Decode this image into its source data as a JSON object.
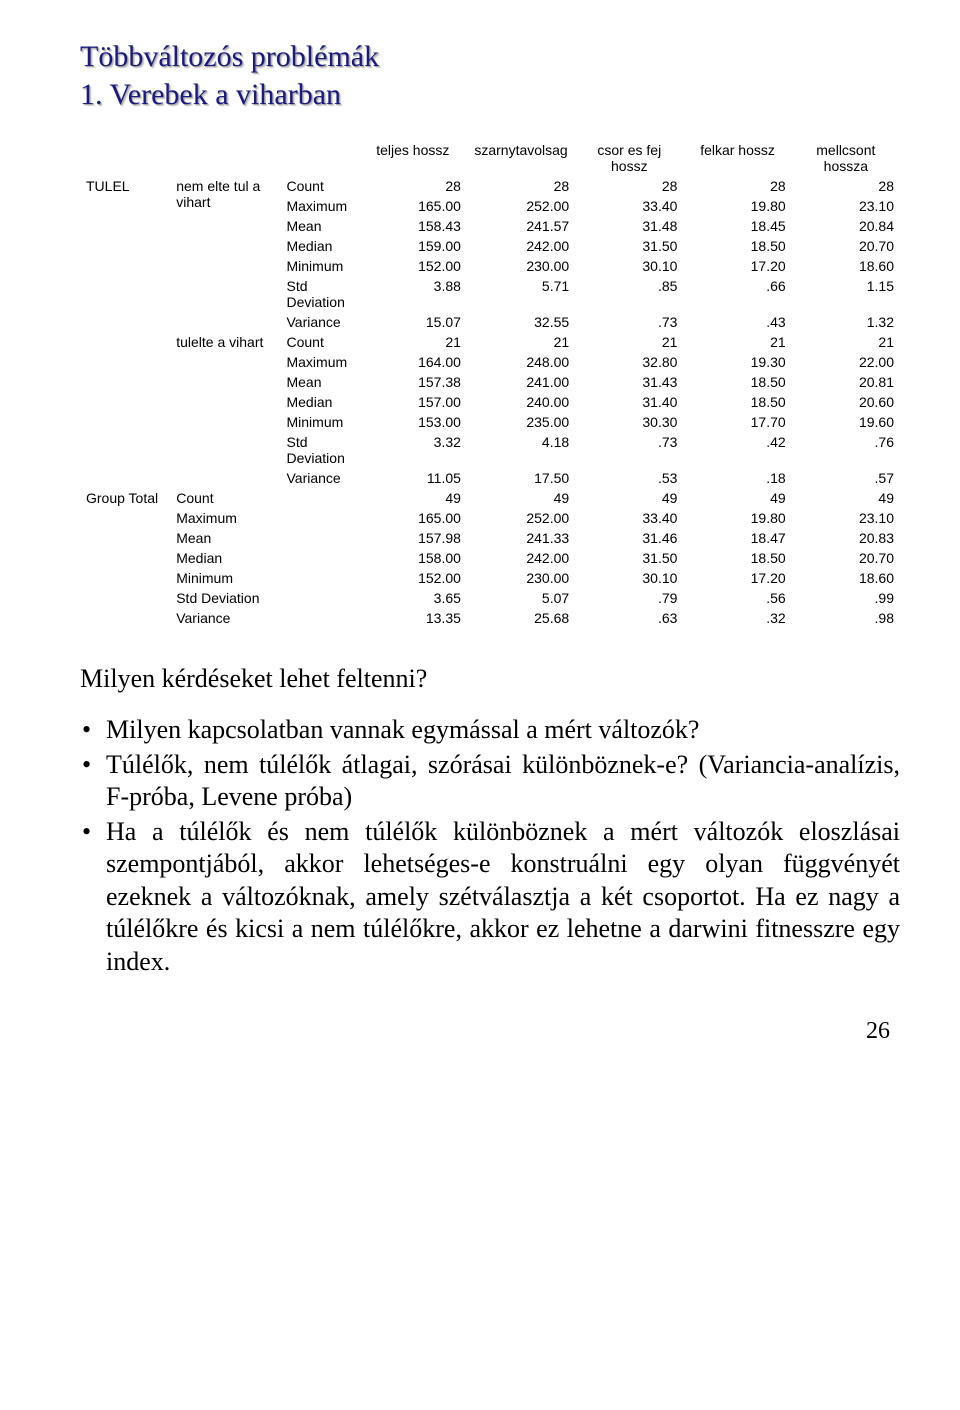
{
  "titles": {
    "main": "Többváltozós problémák",
    "sub": "1. Verebek a viharban"
  },
  "table": {
    "columns": [
      "teljes hossz",
      "szarnytavolsag",
      "csor es fej hossz",
      "felkar hossz",
      "mellcsont hossza"
    ],
    "groups": [
      {
        "name": "TULEL",
        "sub": [
          {
            "name": "nem elte tul a vihart",
            "rows": [
              [
                "Count",
                "28",
                "28",
                "28",
                "28",
                "28"
              ],
              [
                "Maximum",
                "165.00",
                "252.00",
                "33.40",
                "19.80",
                "23.10"
              ],
              [
                "Mean",
                "158.43",
                "241.57",
                "31.48",
                "18.45",
                "20.84"
              ],
              [
                "Median",
                "159.00",
                "242.00",
                "31.50",
                "18.50",
                "20.70"
              ],
              [
                "Minimum",
                "152.00",
                "230.00",
                "30.10",
                "17.20",
                "18.60"
              ],
              [
                "Std Deviation",
                "3.88",
                "5.71",
                ".85",
                ".66",
                "1.15"
              ],
              [
                "Variance",
                "15.07",
                "32.55",
                ".73",
                ".43",
                "1.32"
              ]
            ]
          },
          {
            "name": "tulelte a vihart",
            "rows": [
              [
                "Count",
                "21",
                "21",
                "21",
                "21",
                "21"
              ],
              [
                "Maximum",
                "164.00",
                "248.00",
                "32.80",
                "19.30",
                "22.00"
              ],
              [
                "Mean",
                "157.38",
                "241.00",
                "31.43",
                "18.50",
                "20.81"
              ],
              [
                "Median",
                "157.00",
                "240.00",
                "31.40",
                "18.50",
                "20.60"
              ],
              [
                "Minimum",
                "153.00",
                "235.00",
                "30.30",
                "17.70",
                "19.60"
              ],
              [
                "Std Deviation",
                "3.32",
                "4.18",
                ".73",
                ".42",
                ".76"
              ],
              [
                "Variance",
                "11.05",
                "17.50",
                ".53",
                ".18",
                ".57"
              ]
            ]
          }
        ]
      }
    ],
    "total": {
      "name": "Group Total",
      "rows": [
        [
          "Count",
          "49",
          "49",
          "49",
          "49",
          "49"
        ],
        [
          "Maximum",
          "165.00",
          "252.00",
          "33.40",
          "19.80",
          "23.10"
        ],
        [
          "Mean",
          "157.98",
          "241.33",
          "31.46",
          "18.47",
          "20.83"
        ],
        [
          "Median",
          "158.00",
          "242.00",
          "31.50",
          "18.50",
          "20.70"
        ],
        [
          "Minimum",
          "152.00",
          "230.00",
          "30.10",
          "17.20",
          "18.60"
        ],
        [
          "Std Deviation",
          "3.65",
          "5.07",
          ".79",
          ".56",
          ".99"
        ],
        [
          "Variance",
          "13.35",
          "25.68",
          ".63",
          ".32",
          ".98"
        ]
      ]
    }
  },
  "question": "Milyen kérdéseket lehet feltenni?",
  "bullets": [
    "Milyen kapcsolatban vannak egymással a mért változók?",
    "Túlélők, nem túlélők átlagai, szórásai különböznek-e? (Variancia-analízis, F-próba, Levene próba)",
    "Ha a túlélők és nem túlélők különböznek a mért változók eloszlásai szempontjából, akkor lehetséges-e konstruálni egy olyan függvényét ezeknek a változóknak, amely szétválasztja a két csoportot. Ha ez nagy a túlélőkre és kicsi a nem túlélőkre, akkor ez lehetne a darwini fitnesszre egy index."
  ],
  "pagenum": "26"
}
